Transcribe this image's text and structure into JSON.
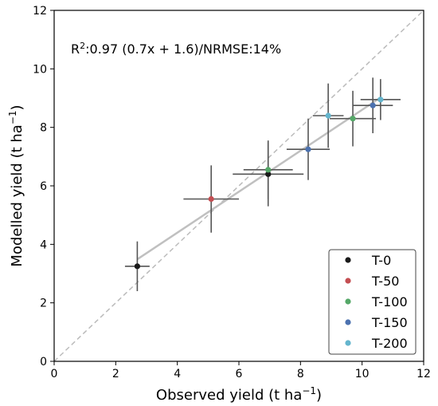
{
  "chart_data": {
    "type": "scatter",
    "xlabel": "Observed yield (t ha",
    "xlabel_sup": "−1",
    "xlabel_end": ")",
    "ylabel": "Modelled yield (t ha",
    "ylabel_sup": "−1",
    "ylabel_end": ")",
    "xlim": [
      0,
      12
    ],
    "ylim": [
      0,
      12
    ],
    "xticks": [
      0,
      2,
      4,
      6,
      8,
      10,
      12
    ],
    "yticks": [
      0,
      2,
      4,
      6,
      8,
      10,
      12
    ],
    "grid": false,
    "legend_position": "bottom-right",
    "annotation": {
      "r_label": "R",
      "r_sup": "2",
      "text": ":0.97 (0.7x + 1.6)/NRMSE:14%"
    },
    "one_to_one_line": {
      "from": [
        0,
        0
      ],
      "to": [
        12,
        12
      ],
      "color": "#bbbbbb",
      "style": "dashed"
    },
    "regression_line": {
      "x": [
        2.7,
        10.6
      ],
      "y": [
        3.49,
        9.02
      ],
      "color": "#c0c0c0"
    },
    "series": [
      {
        "name": "T-0",
        "color": "#1a1a1a",
        "points": [
          {
            "x": 2.7,
            "y": 3.25,
            "xerr": 0.4,
            "yerr": 0.85
          },
          {
            "x": 6.95,
            "y": 6.4,
            "xerr": 1.15,
            "yerr": 1.1
          }
        ]
      },
      {
        "name": "T-50",
        "color": "#c44e52",
        "points": [
          {
            "x": 5.1,
            "y": 5.55,
            "xerr": 0.9,
            "yerr": 1.15
          }
        ]
      },
      {
        "name": "T-100",
        "color": "#55a868",
        "points": [
          {
            "x": 6.95,
            "y": 6.55,
            "xerr": 0.8,
            "yerr": 1.0
          },
          {
            "x": 9.7,
            "y": 8.3,
            "xerr": 0.75,
            "yerr": 0.95
          }
        ]
      },
      {
        "name": "T-150",
        "color": "#4c72b0",
        "points": [
          {
            "x": 8.25,
            "y": 7.25,
            "xerr": 0.7,
            "yerr": 1.05
          },
          {
            "x": 10.35,
            "y": 8.75,
            "xerr": 0.65,
            "yerr": 0.95
          }
        ]
      },
      {
        "name": "T-200",
        "color": "#64b5cd",
        "points": [
          {
            "x": 8.9,
            "y": 8.4,
            "xerr": 0.5,
            "yerr": 1.1
          },
          {
            "x": 10.6,
            "y": 8.95,
            "xerr": 0.65,
            "yerr": 0.7
          }
        ]
      }
    ]
  }
}
